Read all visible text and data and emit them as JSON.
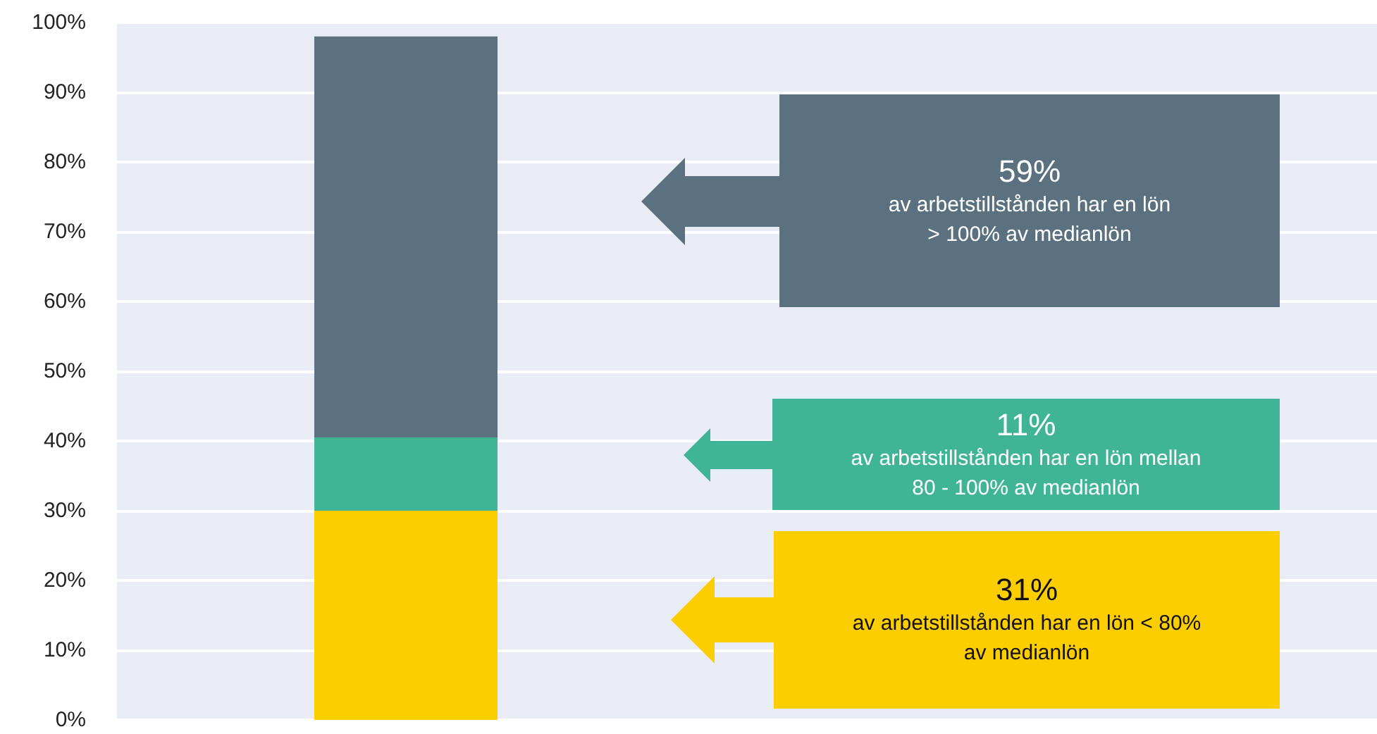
{
  "chart_data": {
    "type": "bar",
    "stacked": true,
    "categories": [
      null
    ],
    "series": [
      {
        "color": "#fcce00",
        "values": [
          30
        ]
      },
      {
        "color": "#40b596",
        "values": [
          10.5
        ]
      },
      {
        "color": "#5b717f",
        "values": [
          57.5
        ]
      }
    ],
    "ylim": [
      0,
      100
    ],
    "yticks": [
      {
        "value": 0,
        "label": "0%"
      },
      {
        "value": 10,
        "label": "10%"
      },
      {
        "value": 20,
        "label": "20%"
      },
      {
        "value": 30,
        "label": "30%"
      },
      {
        "value": 40,
        "label": "40%"
      },
      {
        "value": 50,
        "label": "50%"
      },
      {
        "value": 60,
        "label": "60%"
      },
      {
        "value": 70,
        "label": "70%"
      },
      {
        "value": 80,
        "label": "80%"
      },
      {
        "value": 90,
        "label": "90%"
      },
      {
        "value": 100,
        "label": "100%"
      }
    ],
    "grid": "y",
    "annotations": [
      "59%\nav arbetstillstånden har en lön\n> 100% av medianlön",
      "11%\nav arbetstillstånden har en lön mellan\n80 - 100% av medianlön",
      "31%\nav arbetstillstånden har en lön < 80%\nav medianlön"
    ]
  }
}
